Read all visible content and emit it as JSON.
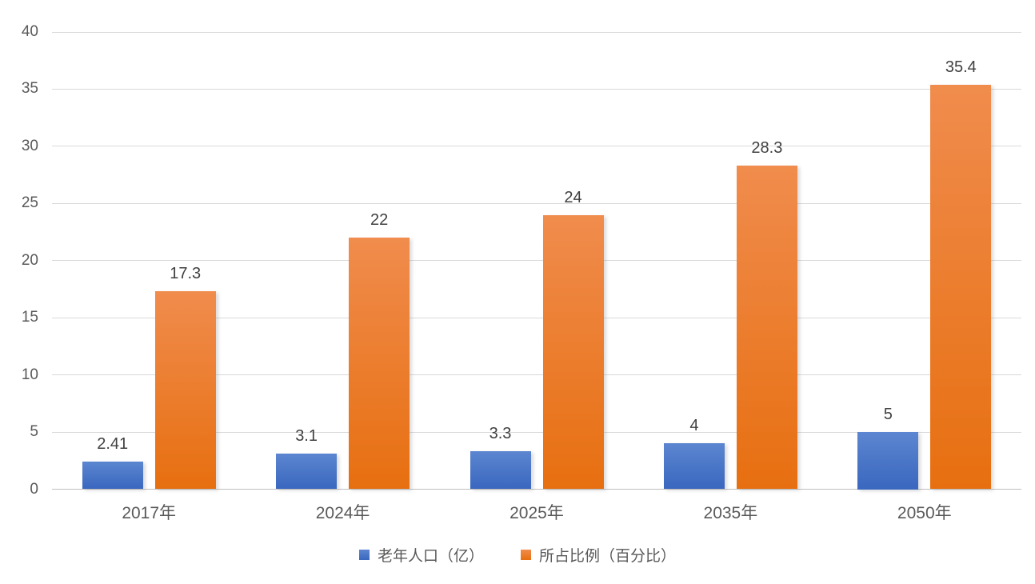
{
  "chart_data": {
    "type": "bar",
    "title": "",
    "xlabel": "",
    "ylabel": "",
    "categories": [
      "2017年",
      "2024年",
      "2025年",
      "2035年",
      "2050年"
    ],
    "series": [
      {
        "name": "老年人口（亿）",
        "values": [
          2.41,
          3.1,
          3.3,
          4,
          5
        ],
        "labels": [
          "2.41",
          "3.1",
          "3.3",
          "4",
          "5"
        ],
        "color": "#4472c4",
        "gradient_top": "#5c86d0",
        "gradient_bottom": "#3a67bf"
      },
      {
        "name": "所占比例（百分比）",
        "values": [
          17.3,
          22,
          24,
          28.3,
          35.4
        ],
        "labels": [
          "17.3",
          "22",
          "24",
          "28.3",
          "35.4"
        ],
        "color": "#ed7d31",
        "gradient_top": "#f08c4d",
        "gradient_bottom": "#e76f10"
      }
    ],
    "ylim": [
      0,
      40
    ],
    "yticks": [
      0,
      5,
      10,
      15,
      20,
      25,
      30,
      35,
      40
    ],
    "ytick_labels": [
      "0",
      "5",
      "10",
      "15",
      "20",
      "25",
      "30",
      "35",
      "40"
    ],
    "grid": "horizontal",
    "gridline_color": "#d9d9d9",
    "axis_line_color": "#bfbfbf",
    "axis_label_color": "#595959",
    "value_label_color": "#404040",
    "data_labels": true,
    "legend_position": "bottom",
    "background": "#ffffff"
  }
}
